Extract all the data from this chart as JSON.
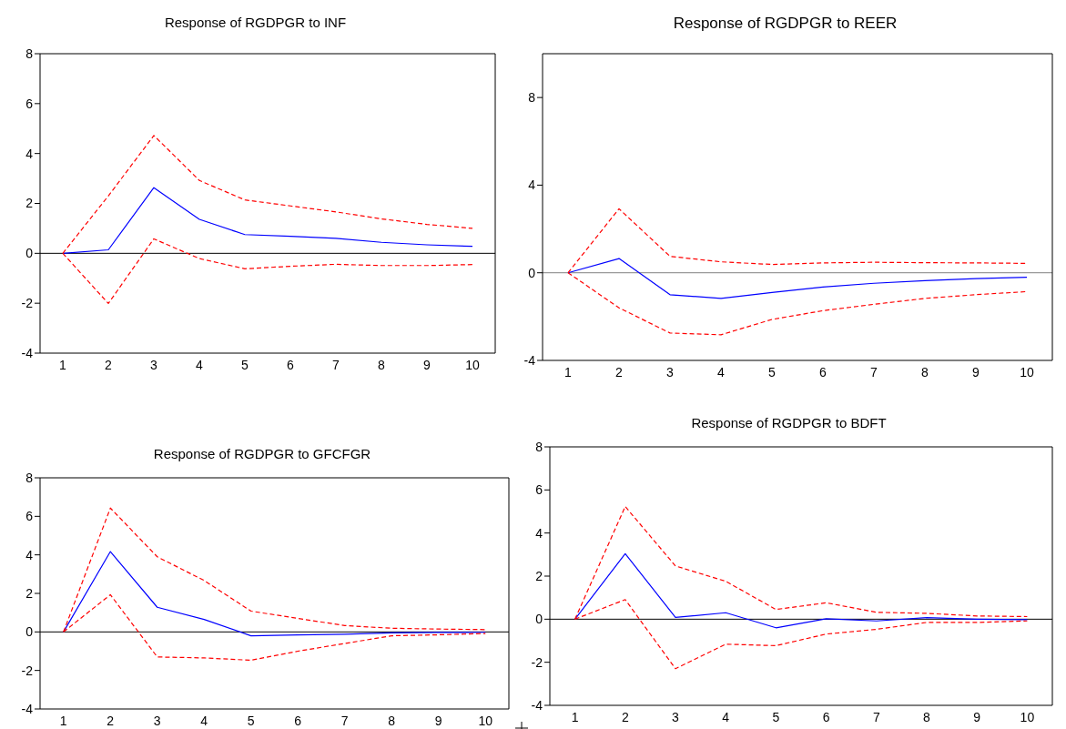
{
  "chart_data": [
    {
      "type": "line",
      "title": "Response of RGDPGR to INF",
      "categories": [
        "1",
        "2",
        "3",
        "4",
        "5",
        "6",
        "7",
        "8",
        "9",
        "10"
      ],
      "ylim": [
        -4,
        8
      ],
      "yticks": [
        -4,
        -2,
        0,
        2,
        4,
        6,
        8
      ],
      "marker": "none",
      "ref_lines": [
        {
          "axis": "y",
          "value": 0,
          "color": "#000000"
        }
      ],
      "series": [
        {
          "color": "#0000ff",
          "line_style": "solid",
          "values": [
            0,
            0.14,
            2.63,
            1.36,
            0.75,
            0.68,
            0.6,
            0.44,
            0.34,
            0.28
          ]
        },
        {
          "color": "#ff0000",
          "line_style": "dashed",
          "values": [
            0,
            2.3,
            4.72,
            2.92,
            2.14,
            1.9,
            1.66,
            1.38,
            1.16,
            1.0
          ]
        },
        {
          "color": "#ff0000",
          "line_style": "dashed",
          "values": [
            0,
            -2.01,
            0.58,
            -0.21,
            -0.62,
            -0.52,
            -0.44,
            -0.49,
            -0.49,
            -0.45
          ]
        }
      ]
    },
    {
      "type": "line",
      "title": "Response of RGDPGR to REER",
      "categories": [
        "1",
        "2",
        "3",
        "4",
        "5",
        "6",
        "7",
        "8",
        "9",
        "10"
      ],
      "ylim": [
        -4,
        10
      ],
      "yticks": [
        -4,
        0,
        4,
        8
      ],
      "marker": "none",
      "ref_lines": [
        {
          "axis": "y",
          "value": 0,
          "color": "#808080"
        }
      ],
      "series": [
        {
          "color": "#0000ff",
          "line_style": "solid",
          "values": [
            0,
            0.65,
            -1.0,
            -1.17,
            -0.9,
            -0.65,
            -0.48,
            -0.36,
            -0.27,
            -0.2
          ]
        },
        {
          "color": "#ff0000",
          "line_style": "dashed",
          "values": [
            0,
            2.92,
            0.75,
            0.5,
            0.38,
            0.45,
            0.48,
            0.46,
            0.45,
            0.43
          ]
        },
        {
          "color": "#ff0000",
          "line_style": "dashed",
          "values": [
            0,
            -1.6,
            -2.75,
            -2.83,
            -2.13,
            -1.73,
            -1.44,
            -1.17,
            -1.0,
            -0.86
          ]
        }
      ]
    },
    {
      "type": "line",
      "title": "Response of RGDPGR to GFCFGR",
      "categories": [
        "1",
        "2",
        "3",
        "4",
        "5",
        "6",
        "7",
        "8",
        "9",
        "10"
      ],
      "ylim": [
        -4,
        8
      ],
      "yticks": [
        -4,
        -2,
        0,
        2,
        4,
        6,
        8
      ],
      "marker": "none",
      "ref_lines": [
        {
          "axis": "y",
          "value": 0,
          "color": "#000000"
        }
      ],
      "series": [
        {
          "color": "#0000ff",
          "line_style": "solid",
          "values": [
            0,
            4.17,
            1.28,
            0.65,
            -0.2,
            -0.16,
            -0.12,
            -0.05,
            -0.03,
            -0.02
          ]
        },
        {
          "color": "#ff0000",
          "line_style": "dashed",
          "values": [
            0,
            6.43,
            3.9,
            2.67,
            1.08,
            0.7,
            0.33,
            0.19,
            0.15,
            0.12
          ]
        },
        {
          "color": "#ff0000",
          "line_style": "dashed",
          "values": [
            0,
            1.93,
            -1.3,
            -1.35,
            -1.47,
            -1.0,
            -0.6,
            -0.2,
            -0.15,
            -0.08
          ]
        }
      ]
    },
    {
      "type": "line",
      "title": "Response of RGDPGR to BDFT",
      "categories": [
        "1",
        "2",
        "3",
        "4",
        "5",
        "6",
        "7",
        "8",
        "9",
        "10"
      ],
      "ylim": [
        -4,
        8
      ],
      "yticks": [
        -4,
        -2,
        0,
        2,
        4,
        6,
        8
      ],
      "marker": "none",
      "ref_lines": [
        {
          "axis": "y",
          "value": 0,
          "color": "#000000"
        }
      ],
      "series": [
        {
          "color": "#0000ff",
          "line_style": "solid",
          "values": [
            0,
            3.04,
            0.08,
            0.3,
            -0.4,
            0.02,
            -0.08,
            0.07,
            0,
            -0.02
          ]
        },
        {
          "color": "#ff0000",
          "line_style": "dashed",
          "values": [
            0,
            5.23,
            2.47,
            1.76,
            0.45,
            0.76,
            0.32,
            0.27,
            0.15,
            0.12
          ]
        },
        {
          "color": "#ff0000",
          "line_style": "dashed",
          "values": [
            0,
            0.91,
            -2.3,
            -1.16,
            -1.23,
            -0.69,
            -0.47,
            -0.15,
            -0.15,
            -0.08
          ]
        }
      ]
    }
  ]
}
